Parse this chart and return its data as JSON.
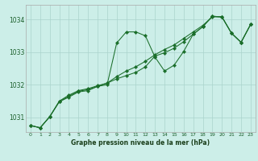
{
  "title": "Graphe pression niveau de la mer (hPa)",
  "bg_color": "#cceee8",
  "grid_color": "#aad4cc",
  "line_color": "#1a6e2a",
  "marker_color": "#1a6e2a",
  "xlim": [
    -0.5,
    23.5
  ],
  "ylim": [
    1030.55,
    1034.45
  ],
  "yticks": [
    1031,
    1032,
    1033,
    1034
  ],
  "xticks": [
    0,
    1,
    2,
    3,
    4,
    5,
    6,
    7,
    8,
    9,
    10,
    11,
    12,
    13,
    14,
    15,
    16,
    17,
    18,
    19,
    20,
    21,
    22,
    23
  ],
  "series1": [
    [
      0,
      1030.75
    ],
    [
      1,
      1030.68
    ],
    [
      2,
      1031.02
    ],
    [
      3,
      1031.48
    ],
    [
      4,
      1031.62
    ],
    [
      5,
      1031.78
    ],
    [
      6,
      1031.82
    ],
    [
      7,
      1031.95
    ],
    [
      8,
      1032.0
    ],
    [
      9,
      1033.28
    ],
    [
      10,
      1033.62
    ],
    [
      11,
      1033.62
    ],
    [
      12,
      1033.5
    ],
    [
      13,
      1032.85
    ],
    [
      14,
      1032.42
    ],
    [
      15,
      1032.6
    ],
    [
      16,
      1033.02
    ],
    [
      17,
      1033.55
    ],
    [
      18,
      1033.78
    ],
    [
      19,
      1034.1
    ],
    [
      20,
      1034.08
    ],
    [
      21,
      1033.58
    ],
    [
      22,
      1033.3
    ],
    [
      23,
      1033.85
    ]
  ],
  "series2": [
    [
      0,
      1030.75
    ],
    [
      1,
      1030.68
    ],
    [
      2,
      1031.02
    ],
    [
      3,
      1031.48
    ],
    [
      4,
      1031.65
    ],
    [
      5,
      1031.8
    ],
    [
      6,
      1031.85
    ],
    [
      7,
      1031.95
    ],
    [
      8,
      1032.05
    ],
    [
      9,
      1032.18
    ],
    [
      10,
      1032.28
    ],
    [
      11,
      1032.38
    ],
    [
      12,
      1032.55
    ],
    [
      13,
      1032.88
    ],
    [
      14,
      1032.98
    ],
    [
      15,
      1033.12
    ],
    [
      16,
      1033.32
    ],
    [
      17,
      1033.55
    ],
    [
      18,
      1033.78
    ],
    [
      19,
      1034.1
    ],
    [
      20,
      1034.08
    ],
    [
      21,
      1033.58
    ],
    [
      22,
      1033.3
    ],
    [
      23,
      1033.85
    ]
  ],
  "series3": [
    [
      0,
      1030.75
    ],
    [
      1,
      1030.68
    ],
    [
      2,
      1031.02
    ],
    [
      3,
      1031.5
    ],
    [
      4,
      1031.68
    ],
    [
      5,
      1031.82
    ],
    [
      6,
      1031.88
    ],
    [
      7,
      1031.97
    ],
    [
      8,
      1032.05
    ],
    [
      9,
      1032.25
    ],
    [
      10,
      1032.42
    ],
    [
      11,
      1032.55
    ],
    [
      12,
      1032.72
    ],
    [
      13,
      1032.92
    ],
    [
      14,
      1033.08
    ],
    [
      15,
      1033.22
    ],
    [
      16,
      1033.42
    ],
    [
      17,
      1033.62
    ],
    [
      18,
      1033.82
    ],
    [
      19,
      1034.08
    ],
    [
      20,
      1034.08
    ],
    [
      21,
      1033.58
    ],
    [
      22,
      1033.3
    ],
    [
      23,
      1033.85
    ]
  ]
}
